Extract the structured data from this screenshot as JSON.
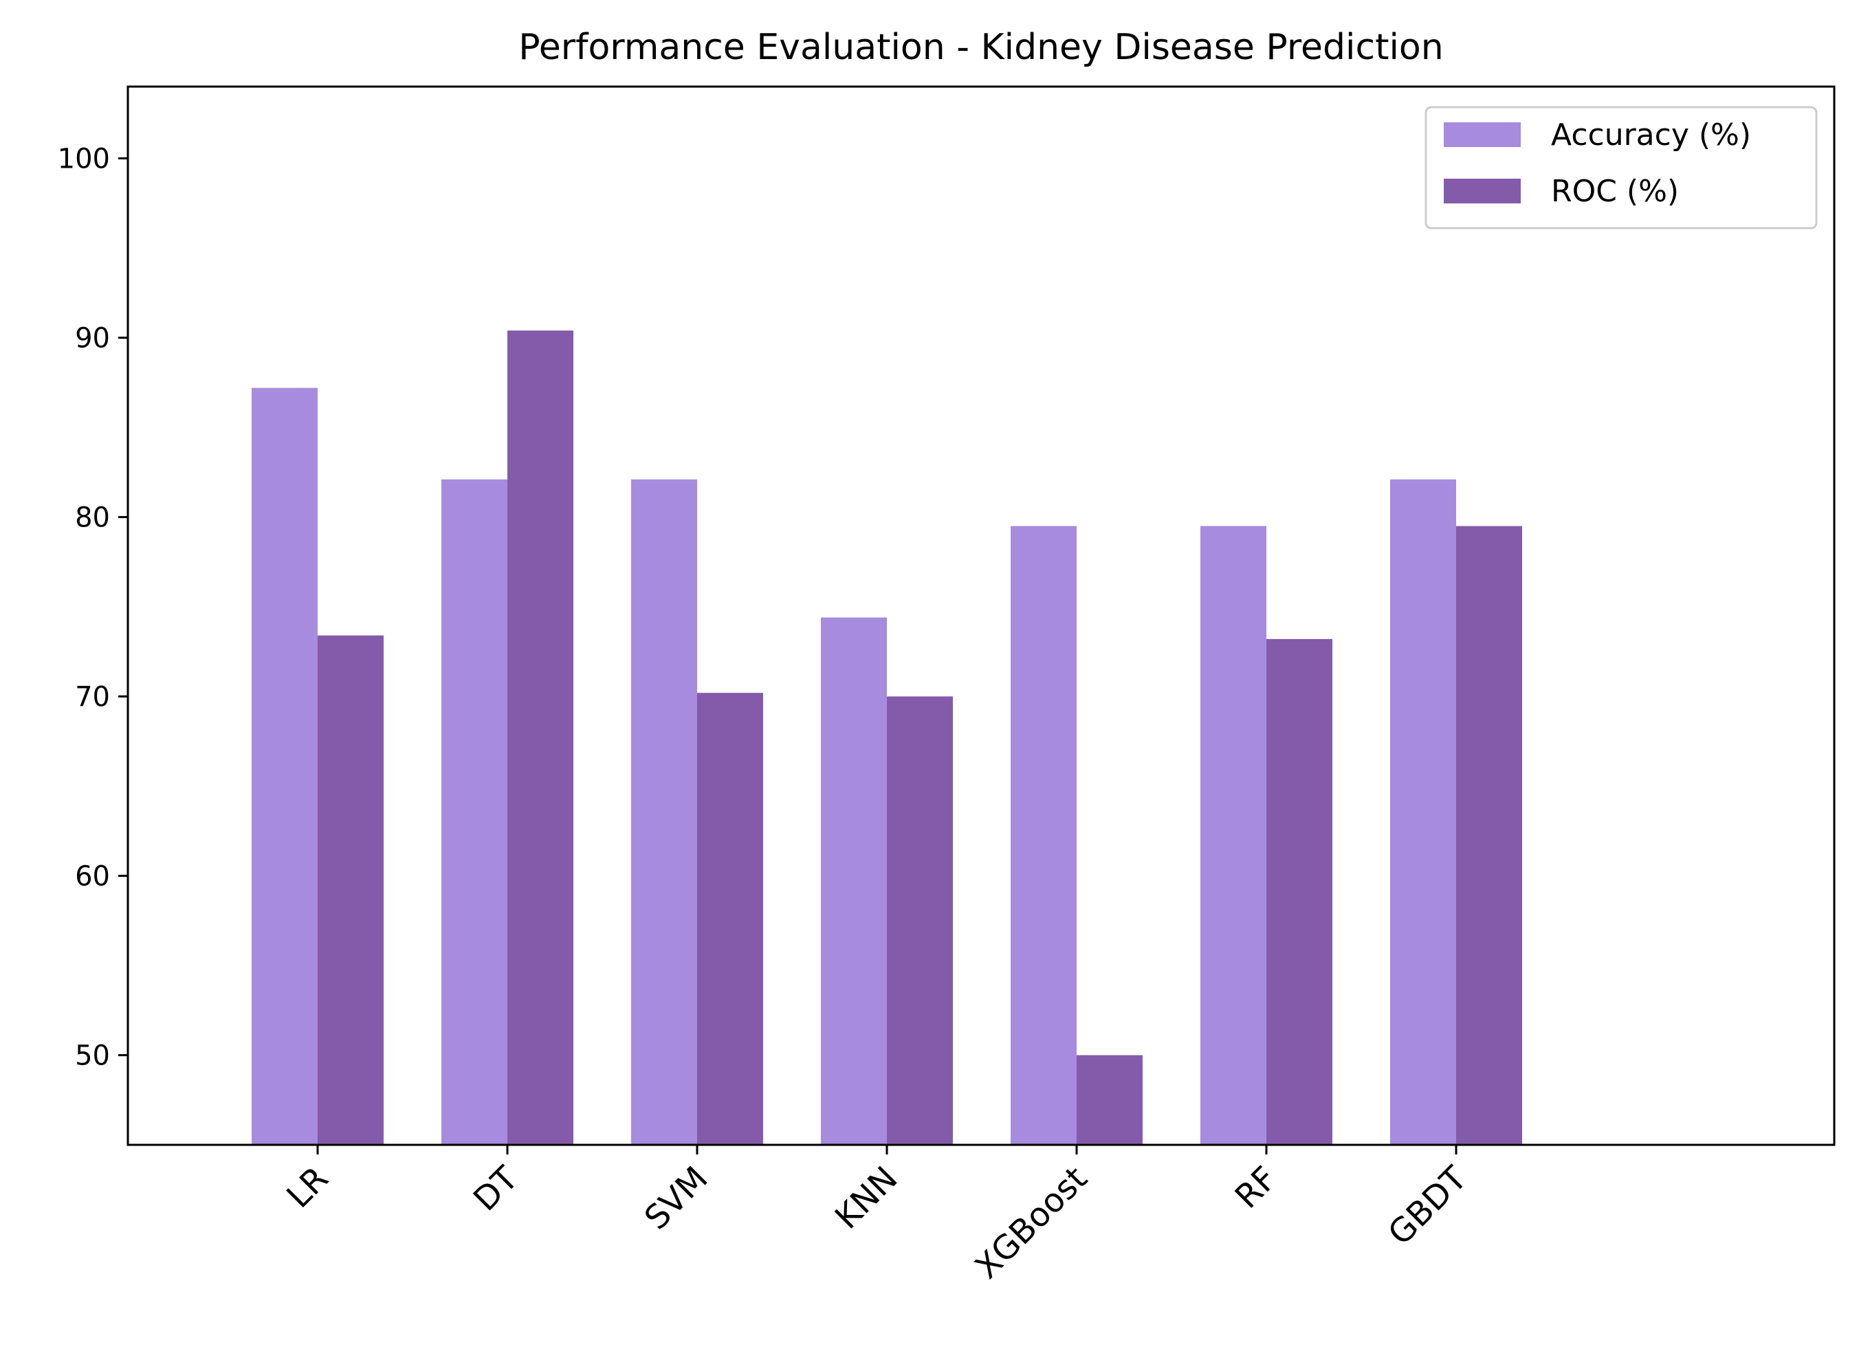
{
  "chart_data": {
    "type": "bar",
    "title": "Performance Evaluation - Kidney Disease Prediction",
    "xlabel": "",
    "ylabel": "",
    "categories": [
      "LR",
      "DT",
      "SVM",
      "KNN",
      "XGBoost",
      "RF",
      "GBDT"
    ],
    "series": [
      {
        "name": "Accuracy (%)",
        "color": "#a68bde",
        "values": [
          87.2,
          82.1,
          82.1,
          74.4,
          79.5,
          79.5,
          82.1
        ]
      },
      {
        "name": "ROC (%)",
        "color": "#845bab",
        "values": [
          73.4,
          90.4,
          70.2,
          70.0,
          50.0,
          73.2,
          79.5
        ]
      }
    ],
    "ylim": [
      45,
      104
    ],
    "yticks": [
      50,
      60,
      70,
      80,
      90,
      100
    ],
    "grid": false,
    "legend_position": "top-right"
  }
}
